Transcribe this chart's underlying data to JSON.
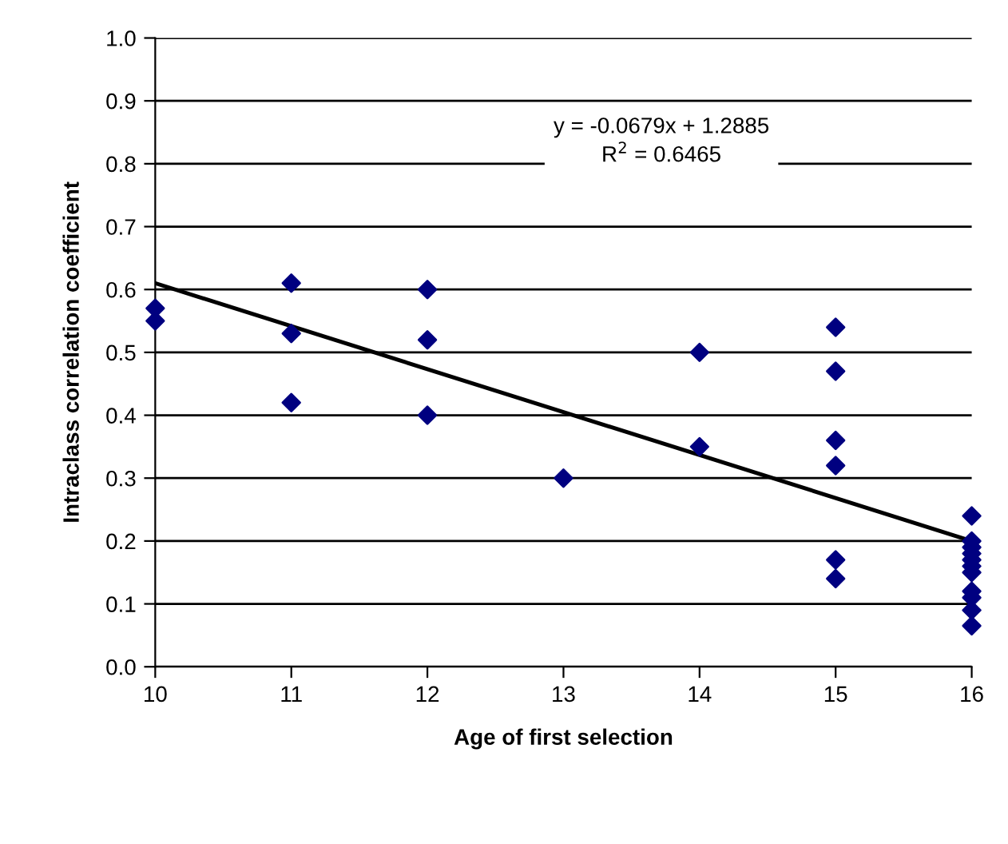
{
  "chart_data": {
    "type": "scatter",
    "xlabel": "Age of first selection",
    "ylabel": "Intraclass correlation coefficient",
    "xlim": [
      10,
      16
    ],
    "xticks": [
      10,
      11,
      12,
      13,
      14,
      15,
      16
    ],
    "ylim": [
      0,
      1
    ],
    "yticks": [
      {
        "value": 0,
        "label": "0.0"
      },
      0.1,
      0.2,
      0.3,
      0.4,
      0.5,
      0.6,
      0.7,
      0.8,
      0.9,
      {
        "value": 1,
        "label": "1.0"
      }
    ],
    "grid": "y",
    "legend": false,
    "series": [
      {
        "color": "#000080",
        "marker": "diamond",
        "x": [
          10,
          10,
          11,
          11,
          11,
          12,
          12,
          12,
          13,
          14,
          14,
          15,
          15,
          15,
          15,
          15,
          15,
          16,
          16,
          16,
          16,
          16,
          16,
          16,
          16,
          16,
          16,
          16
        ],
        "values": [
          0.57,
          0.55,
          0.61,
          0.53,
          0.42,
          0.6,
          0.52,
          0.4,
          0.3,
          0.5,
          0.35,
          0.54,
          0.47,
          0.36,
          0.32,
          0.17,
          0.14,
          0.24,
          0.2,
          0.19,
          0.18,
          0.17,
          0.16,
          0.15,
          0.12,
          0.11,
          0.09,
          0.065
        ]
      },
      {
        "type": "line",
        "color": "#000000",
        "marker": "none",
        "x": [
          10,
          16
        ],
        "values": [
          0.61,
          0.2
        ]
      }
    ],
    "annotations": [
      "y = -0.0679x + 1.2885\nR$^{2}$ = 0.6465"
    ]
  }
}
